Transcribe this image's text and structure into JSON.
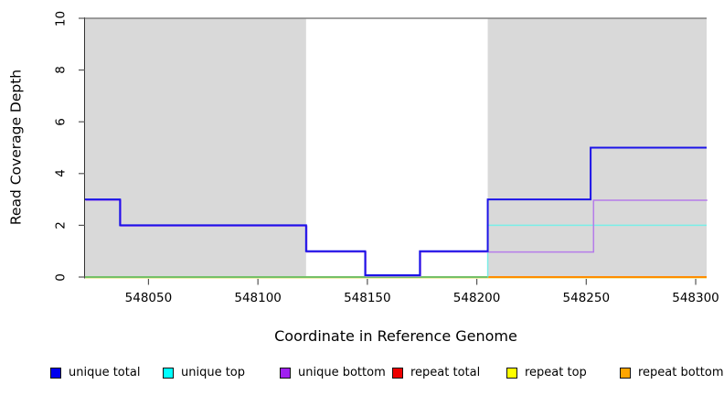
{
  "chart_data": {
    "type": "line",
    "subtype": "step",
    "title": "",
    "xlabel": "Coordinate in Reference Genome",
    "ylabel": "Read Coverage Depth",
    "xlim": [
      548021,
      548305
    ],
    "ylim": [
      0,
      10
    ],
    "x_ticks": [
      548050,
      548100,
      548150,
      548200,
      548250,
      548300
    ],
    "y_ticks": [
      0,
      2,
      4,
      6,
      8,
      10
    ],
    "grid": false,
    "legend_position": "bottom",
    "axis_color": "#555555",
    "shaded_regions": [
      {
        "name": "left-shaded-region",
        "x0": 548021,
        "x1": 548122,
        "y0": 0,
        "y1": 10,
        "color": "#d9d9d9"
      },
      {
        "name": "right-shaded-region",
        "x0": 548205,
        "x1": 548305,
        "y0": 0,
        "y1": 10,
        "color": "#d9d9d9"
      }
    ],
    "top_rule": {
      "y": 10,
      "color": "#808080",
      "width": 1.5
    },
    "series": [
      {
        "name": "repeat total",
        "color": "#dd1111",
        "width": 1.4,
        "offset": [
          0,
          0
        ],
        "lift_zero": false,
        "in_legend": true,
        "steps": [
          [
            548021,
            0
          ]
        ]
      },
      {
        "name": "repeat top",
        "color": "#f2eeb2",
        "width": 1.4,
        "offset": [
          0,
          1.3
        ],
        "lift_zero": false,
        "in_legend": true,
        "steps": [
          [
            548021,
            0
          ]
        ]
      },
      {
        "name": "repeat bottom",
        "color": "#ff8c00",
        "width": 2,
        "offset": [
          0,
          0
        ],
        "lift_zero": false,
        "in_legend": true,
        "steps": [
          [
            548021,
            0
          ]
        ]
      },
      {
        "name": "unique top",
        "color": "#79eee7",
        "width": 1.5,
        "offset": [
          0,
          0
        ],
        "lift_zero": false,
        "in_legend": true,
        "steps": [
          [
            548021,
            0
          ],
          [
            548205,
            2
          ]
        ]
      },
      {
        "name": "zero-depth overlap",
        "color": "#5cc263",
        "width": 1.5,
        "offset": [
          0,
          0
        ],
        "lift_zero": false,
        "in_legend": false,
        "x_end": 548205,
        "steps": [
          [
            548021,
            0
          ]
        ]
      },
      {
        "name": "unique bottom",
        "color": "#b57ce9",
        "width": 1.5,
        "offset": [
          0.8,
          0.9
        ],
        "lift_zero": true,
        "in_legend": true,
        "steps": [
          [
            548021,
            3
          ],
          [
            548037,
            2
          ],
          [
            548122,
            1
          ],
          [
            548149,
            0
          ],
          [
            548174,
            1
          ],
          [
            548253,
            3
          ]
        ]
      },
      {
        "name": "unique total",
        "color": "#1c13e8",
        "width": 2,
        "offset": [
          0,
          0
        ],
        "lift_zero": true,
        "in_legend": true,
        "steps": [
          [
            548021,
            3
          ],
          [
            548037,
            2
          ],
          [
            548122,
            1
          ],
          [
            548149,
            0
          ],
          [
            548174,
            1
          ],
          [
            548205,
            3
          ],
          [
            548252,
            5
          ]
        ]
      }
    ],
    "legend": [
      {
        "label": "unique total",
        "color": "#0000ee"
      },
      {
        "label": "unique top",
        "color": "#00ffff"
      },
      {
        "label": "unique bottom",
        "color": "#a020f0"
      },
      {
        "label": "repeat total",
        "color": "#ee0000"
      },
      {
        "label": "repeat top",
        "color": "#ffff00"
      },
      {
        "label": "repeat bottom",
        "color": "#ffa500"
      }
    ]
  }
}
